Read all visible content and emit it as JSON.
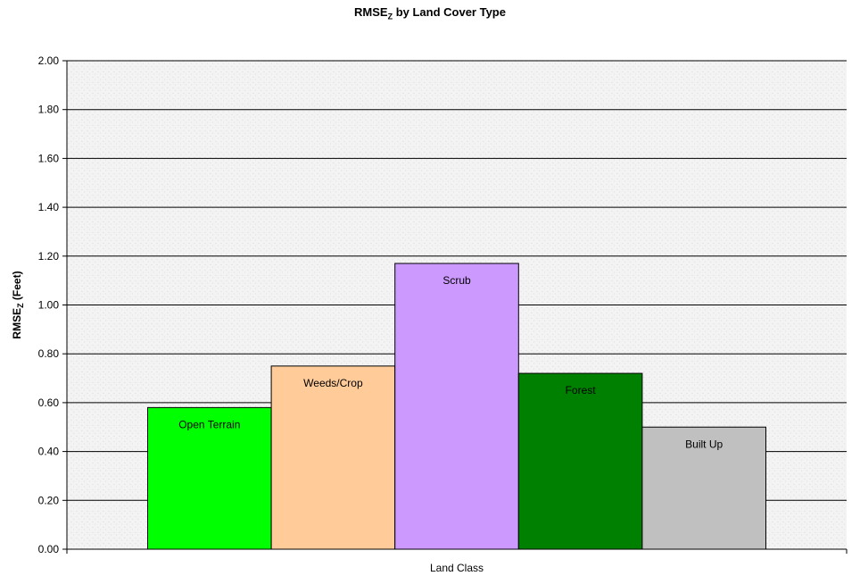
{
  "chart_data": {
    "type": "bar",
    "title": {
      "main": "RMSE",
      "sub": "Z",
      "rest": " by Land Cover Type"
    },
    "xlabel": "Land Class",
    "ylabel": {
      "main": "RMSE",
      "sub": "Z",
      "rest": " (Feet)"
    },
    "ylim": [
      0,
      2.0
    ],
    "yticks": [
      "0.00",
      "0.20",
      "0.40",
      "0.60",
      "0.80",
      "1.00",
      "1.20",
      "1.40",
      "1.60",
      "1.80",
      "2.00"
    ],
    "grid": true,
    "legend": "none",
    "series": [
      {
        "name": "Open Terrain",
        "value": 0.58,
        "color": "#00ff00"
      },
      {
        "name": "Weeds/Crop",
        "value": 0.75,
        "color": "#ffcc99"
      },
      {
        "name": "Scrub",
        "value": 1.17,
        "color": "#cc99ff"
      },
      {
        "name": "Forest",
        "value": 0.72,
        "color": "#008000"
      },
      {
        "name": "Built Up",
        "value": 0.5,
        "color": "#c0c0c0"
      }
    ],
    "plot_background": "#f2f2f2"
  }
}
